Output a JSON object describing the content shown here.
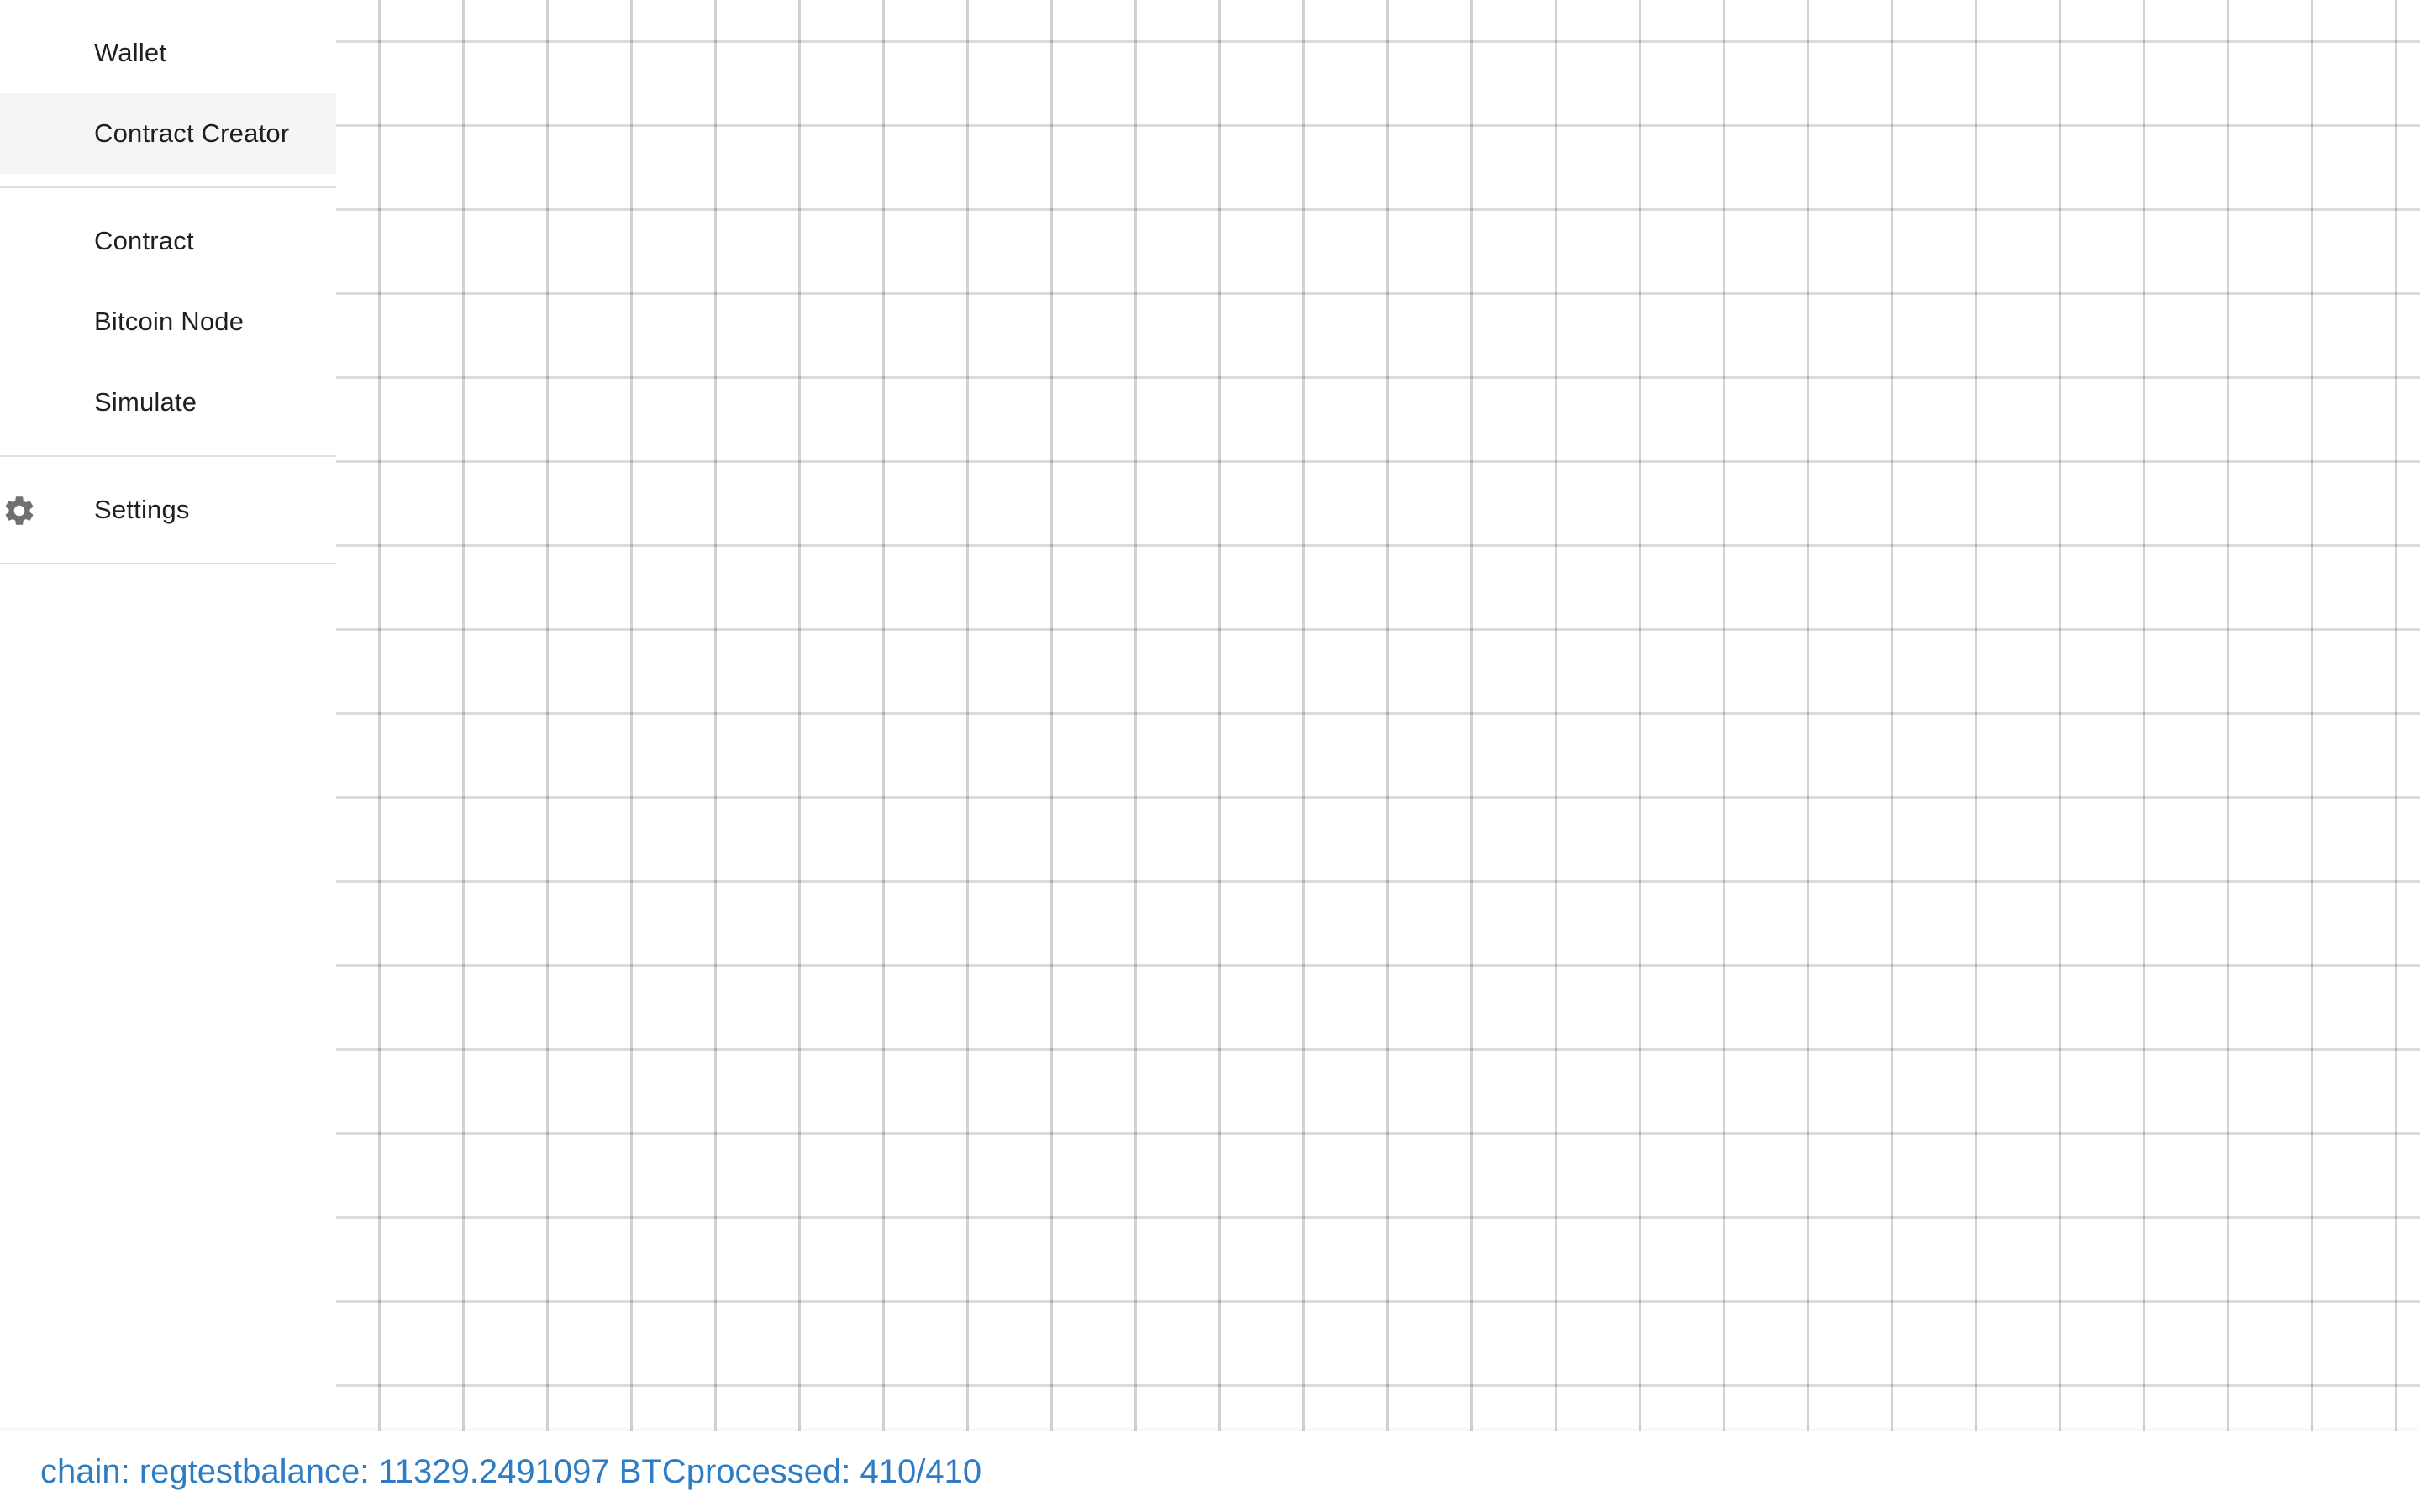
{
  "sidebar": {
    "group_one": [
      {
        "label": "Wallet"
      },
      {
        "label": "Contract Creator"
      }
    ],
    "group_two": [
      {
        "label": "Contract"
      },
      {
        "label": "Bitcoin Node"
      },
      {
        "label": "Simulate"
      }
    ],
    "group_three": [
      {
        "label": "Settings",
        "icon": "gear-icon"
      }
    ],
    "selected": "Contract Creator"
  },
  "status_bar": {
    "chain": "chain: regtest",
    "balance": "balance: 11329.2491097 BTC",
    "processed": "processed: 410/410"
  },
  "colors": {
    "status_text": "#2e7cc4",
    "selected_bg": "#f5f5f5",
    "divider": "#e0e0e0",
    "icon": "#707070"
  }
}
